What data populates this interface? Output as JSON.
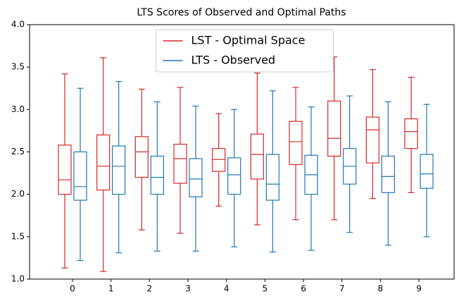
{
  "chart_data": {
    "type": "box",
    "title": "LTS Scores of Observed and Optimal Paths",
    "categories": [
      "0",
      "1",
      "2",
      "3",
      "4",
      "5",
      "6",
      "7",
      "8",
      "9"
    ],
    "series": [
      {
        "name": "LST - Optimal Space",
        "color": "#d62728",
        "min": [
          1.13,
          1.09,
          1.58,
          1.54,
          1.86,
          1.64,
          1.7,
          1.7,
          1.95,
          2.02
        ],
        "q1": [
          2.0,
          2.05,
          2.2,
          2.13,
          2.27,
          2.18,
          2.35,
          2.45,
          2.37,
          2.54
        ],
        "median": [
          2.17,
          2.33,
          2.5,
          2.42,
          2.41,
          2.47,
          2.62,
          2.66,
          2.76,
          2.74
        ],
        "q3": [
          2.58,
          2.7,
          2.68,
          2.59,
          2.54,
          2.71,
          2.86,
          3.1,
          2.91,
          2.89
        ],
        "max": [
          3.42,
          3.61,
          3.24,
          3.26,
          2.95,
          3.43,
          3.26,
          3.62,
          3.47,
          3.38
        ]
      },
      {
        "name": "LTS - Observed",
        "color": "#1f77b4",
        "min": [
          1.22,
          1.31,
          1.33,
          1.33,
          1.38,
          1.32,
          1.34,
          1.55,
          1.4,
          1.5
        ],
        "q1": [
          1.93,
          2.0,
          2.0,
          1.97,
          2.0,
          1.93,
          2.0,
          2.12,
          2.02,
          2.07
        ],
        "median": [
          2.09,
          2.33,
          2.2,
          2.18,
          2.23,
          2.12,
          2.23,
          2.33,
          2.21,
          2.24
        ],
        "q3": [
          2.5,
          2.57,
          2.45,
          2.42,
          2.43,
          2.47,
          2.46,
          2.54,
          2.45,
          2.47
        ],
        "max": [
          3.25,
          3.33,
          3.09,
          3.04,
          3.0,
          3.22,
          3.03,
          3.16,
          3.09,
          3.06
        ]
      }
    ],
    "ylim": [
      1.0,
      4.0
    ],
    "yticks": [
      {
        "value": 1.0,
        "label": "1.0"
      },
      {
        "value": 1.5,
        "label": "1.5"
      },
      {
        "value": 2.0,
        "label": "2.0"
      },
      {
        "value": 2.5,
        "label": "2.5"
      },
      {
        "value": 3.0,
        "label": "3.0"
      },
      {
        "value": 3.5,
        "label": "3.5"
      },
      {
        "value": 4.0,
        "label": "4.0"
      }
    ],
    "legend": "upper center"
  }
}
